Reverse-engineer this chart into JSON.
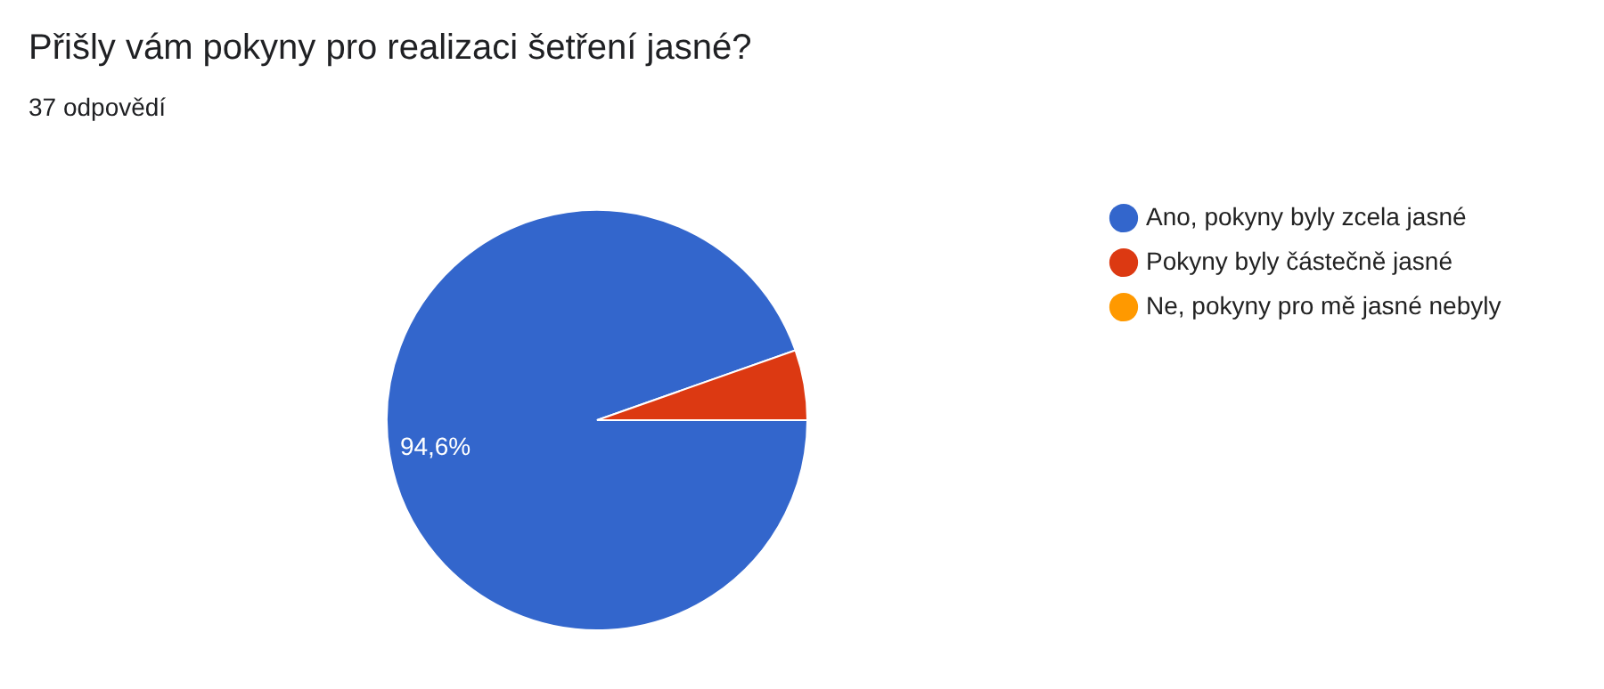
{
  "chart_data": {
    "type": "pie",
    "title": "Přišly vám pokyny pro realizaci šetření jasné?",
    "subtitle": "37 odpovědí",
    "categories": [
      "Ano, pokyny byly zcela jasné",
      "Pokyny byly částečně jasné",
      "Ne, pokyny pro mě jasné nebyly"
    ],
    "values": [
      94.6,
      5.4,
      0
    ],
    "colors": [
      "#3366cc",
      "#dc3912",
      "#ff9900"
    ],
    "value_labels": [
      "94,6%",
      null,
      null
    ],
    "legend": "right"
  }
}
